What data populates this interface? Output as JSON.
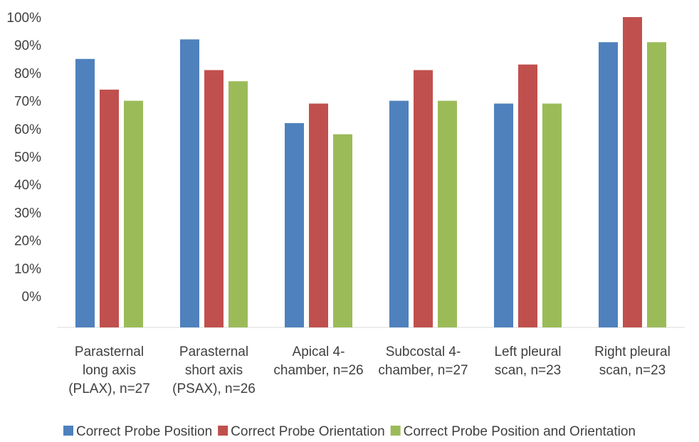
{
  "chart_data": {
    "type": "bar",
    "title": "",
    "xlabel": "",
    "ylabel": "",
    "ylim": [
      0,
      1
    ],
    "y_tick_labels": [
      "0%",
      "10%",
      "20%",
      "30%",
      "40%",
      "50%",
      "60%",
      "70%",
      "80%",
      "90%",
      "100%"
    ],
    "grid": false,
    "legend_position": "bottom",
    "categories": [
      [
        "Parasternal",
        "long axis",
        "(PLAX), n=27"
      ],
      [
        "Parasternal",
        "short axis",
        "(PSAX), n=26"
      ],
      [
        "Apical 4-",
        "chamber, n=26"
      ],
      [
        "Subcostal 4-",
        "chamber, n=27"
      ],
      [
        "Left pleural",
        "scan, n=23"
      ],
      [
        "Right pleural",
        "scan, n=23"
      ]
    ],
    "series": [
      {
        "name": "Correct Probe Position",
        "color": "#4f81bd",
        "values": [
          0.85,
          0.92,
          0.62,
          0.7,
          0.69,
          0.91
        ]
      },
      {
        "name": "Correct Probe Orientation",
        "color": "#c0504d",
        "values": [
          0.74,
          0.81,
          0.69,
          0.81,
          0.83,
          1.0
        ]
      },
      {
        "name": "Correct Probe Position and Orientation",
        "color": "#9bbb59",
        "values": [
          0.7,
          0.77,
          0.58,
          0.7,
          0.69,
          0.91
        ]
      }
    ]
  }
}
